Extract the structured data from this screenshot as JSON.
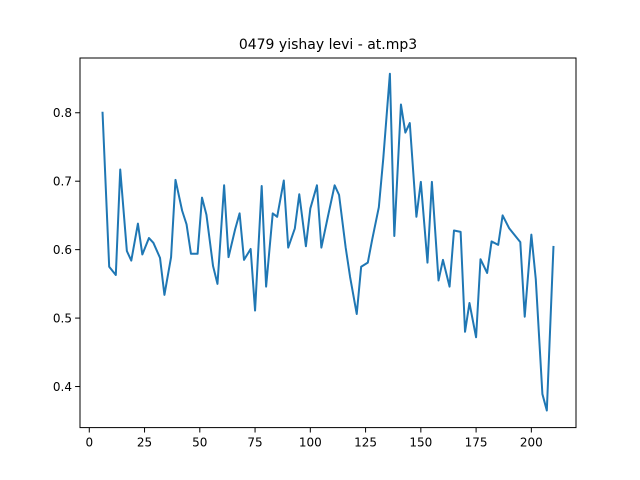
{
  "chart_data": {
    "type": "line",
    "title": "0479 yishay levi - at.mp3",
    "xlabel": "",
    "ylabel": "",
    "xlim": [
      -4.2,
      220.2
    ],
    "ylim": [
      0.34,
      0.88
    ],
    "xticks": [
      0,
      25,
      50,
      75,
      100,
      125,
      150,
      175,
      200
    ],
    "yticks": [
      0.4,
      0.5,
      0.6,
      0.7,
      0.8
    ],
    "ytick_labels": [
      "0.4",
      "0.5",
      "0.6",
      "0.7",
      "0.8"
    ],
    "grid": false,
    "legend": "none",
    "line_color": "#1f77b4",
    "series": [
      {
        "x": [
          6,
          9,
          12,
          14,
          17,
          19,
          22,
          24,
          27,
          29,
          32,
          34,
          37,
          39,
          42,
          44,
          46,
          49,
          51,
          53,
          56,
          58,
          61,
          63,
          66,
          68,
          70,
          73,
          75,
          78,
          80,
          83,
          85,
          88,
          90,
          93,
          95,
          98,
          100,
          103,
          105,
          108,
          111,
          113,
          116,
          118,
          121,
          123,
          126,
          128,
          131,
          133,
          136,
          138,
          141,
          143,
          145,
          148,
          150,
          153,
          155,
          158,
          160,
          163,
          165,
          168,
          170,
          172,
          175,
          177,
          180,
          182,
          185,
          187,
          190,
          192,
          195,
          197,
          200,
          202,
          205,
          207,
          210
        ],
        "values": [
          0.8,
          0.575,
          0.563,
          0.717,
          0.598,
          0.584,
          0.638,
          0.593,
          0.617,
          0.61,
          0.588,
          0.534,
          0.589,
          0.702,
          0.657,
          0.637,
          0.594,
          0.594,
          0.676,
          0.651,
          0.576,
          0.55,
          0.694,
          0.589,
          0.63,
          0.653,
          0.585,
          0.601,
          0.511,
          0.693,
          0.546,
          0.653,
          0.648,
          0.701,
          0.603,
          0.631,
          0.681,
          0.605,
          0.66,
          0.694,
          0.603,
          0.649,
          0.694,
          0.68,
          0.603,
          0.56,
          0.506,
          0.575,
          0.581,
          0.615,
          0.662,
          0.733,
          0.857,
          0.62,
          0.812,
          0.771,
          0.785,
          0.648,
          0.699,
          0.581,
          0.699,
          0.555,
          0.585,
          0.546,
          0.628,
          0.626,
          0.48,
          0.522,
          0.472,
          0.586,
          0.566,
          0.612,
          0.607,
          0.65,
          0.631,
          0.623,
          0.611,
          0.502,
          0.622,
          0.557,
          0.389,
          0.365,
          0.604
        ]
      }
    ]
  }
}
